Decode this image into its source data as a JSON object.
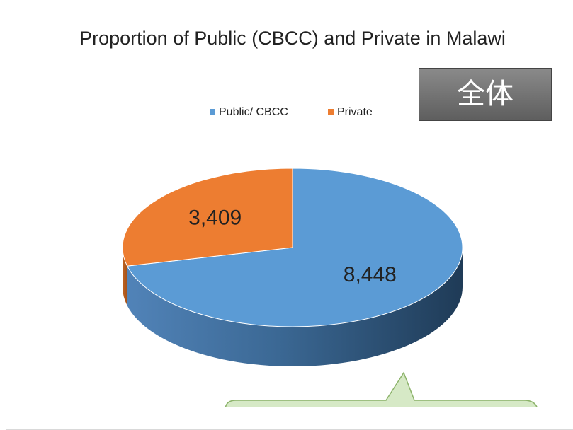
{
  "chart_data": {
    "type": "pie3d",
    "title": "Proportion of Public (CBCC) and Private in Malawi",
    "annotation": "全体",
    "categories": [
      "Public/ CBCC",
      "Private"
    ],
    "values": [
      8448,
      3409
    ],
    "value_labels": [
      "8,448",
      "3,409"
    ],
    "colors": [
      "#5b9bd5",
      "#ed7d31"
    ],
    "legend": "top"
  }
}
